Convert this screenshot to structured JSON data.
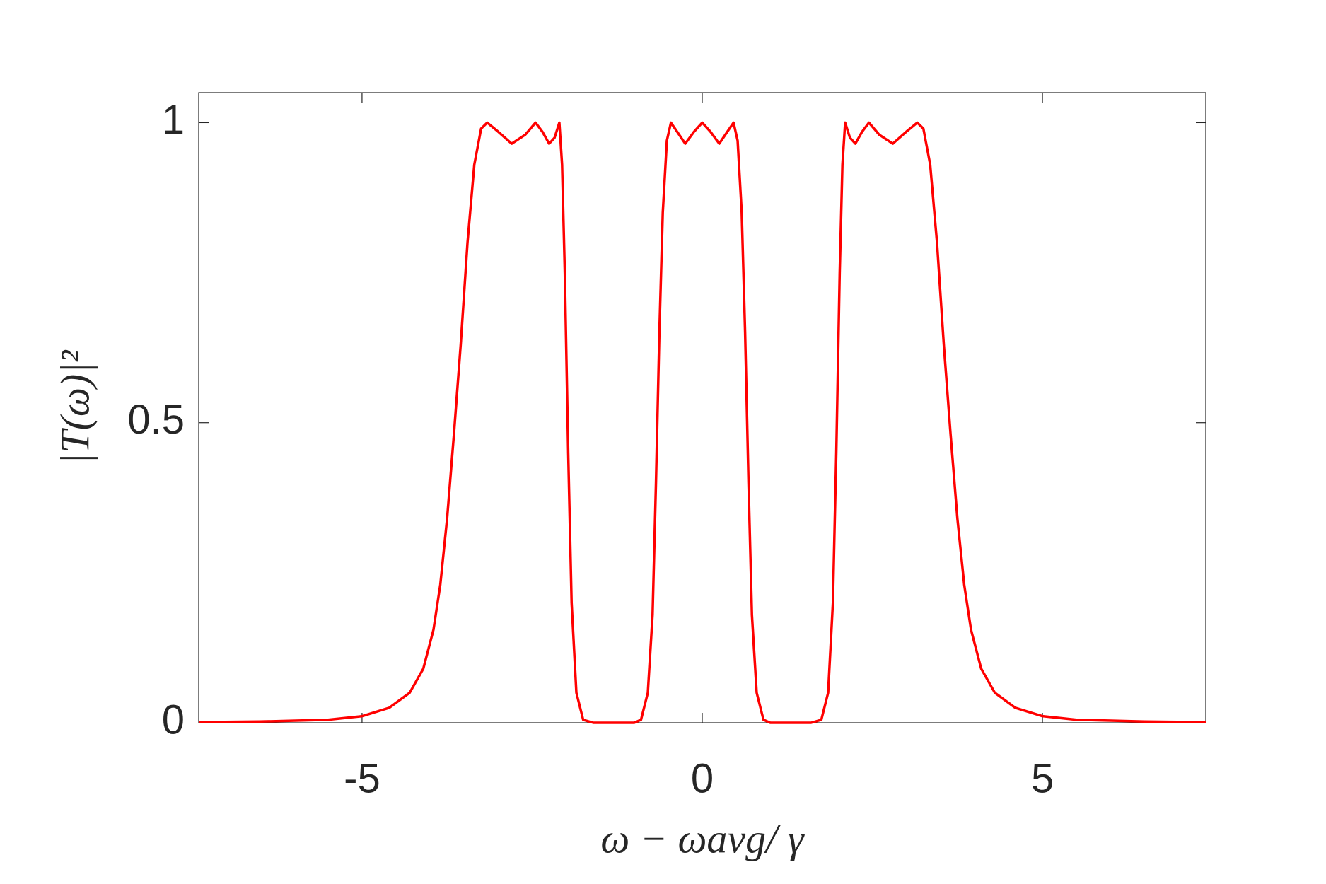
{
  "chart_data": {
    "type": "line",
    "xlabel": "ω − ωavg/ γ",
    "ylabel": "|T(ω)|²",
    "xlim": [
      -7.4,
      7.4
    ],
    "xticks": [
      -5,
      0,
      5
    ],
    "ylim": [
      0,
      1.05
    ],
    "yticks": [
      0,
      0.5,
      1
    ],
    "x": [
      -7.4,
      -6.5,
      -5.5,
      -5,
      -4.6,
      -4.3,
      -4.1,
      -3.95,
      -3.85,
      -3.75,
      -3.65,
      -3.55,
      -3.45,
      -3.35,
      -3.25,
      -3.16,
      -3,
      -2.8,
      -2.6,
      -2.45,
      -2.35,
      -2.25,
      -2.17,
      -2.1,
      -2.06,
      -2.02,
      -1.97,
      -1.92,
      -1.85,
      -1.75,
      -1.6,
      -1,
      -0.9,
      -0.8,
      -0.73,
      -0.68,
      -0.63,
      -0.58,
      -0.52,
      -0.46,
      -0.37,
      -0.25,
      -0.12,
      0,
      0.12,
      0.25,
      0.37,
      0.46,
      0.52,
      0.58,
      0.63,
      0.68,
      0.73,
      0.8,
      0.9,
      1,
      1.6,
      1.75,
      1.85,
      1.92,
      1.97,
      2.02,
      2.06,
      2.1,
      2.17,
      2.25,
      2.35,
      2.45,
      2.6,
      2.8,
      3,
      3.16,
      3.25,
      3.35,
      3.45,
      3.55,
      3.65,
      3.75,
      3.85,
      3.95,
      4.1,
      4.3,
      4.6,
      5,
      5.5,
      6.5,
      7.4
    ],
    "series": [
      {
        "color": "#ff0000",
        "values": [
          0.001,
          0.002,
          0.005,
          0.011,
          0.025,
          0.05,
          0.09,
          0.155,
          0.23,
          0.34,
          0.48,
          0.63,
          0.8,
          0.93,
          0.99,
          1,
          0.985,
          0.965,
          0.98,
          1,
          0.985,
          0.965,
          0.975,
          1,
          0.93,
          0.75,
          0.45,
          0.2,
          0.05,
          0.005,
          0,
          0,
          0.005,
          0.05,
          0.18,
          0.4,
          0.65,
          0.85,
          0.97,
          1,
          0.985,
          0.965,
          0.985,
          1,
          0.985,
          0.965,
          0.985,
          1,
          0.97,
          0.85,
          0.65,
          0.4,
          0.18,
          0.05,
          0.005,
          0,
          0,
          0.005,
          0.05,
          0.2,
          0.45,
          0.75,
          0.93,
          1,
          0.975,
          0.965,
          0.985,
          1,
          0.98,
          0.965,
          0.985,
          1,
          0.99,
          0.93,
          0.8,
          0.63,
          0.48,
          0.34,
          0.23,
          0.155,
          0.09,
          0.05,
          0.025,
          0.011,
          0.005,
          0.002,
          0.001
        ]
      }
    ]
  }
}
